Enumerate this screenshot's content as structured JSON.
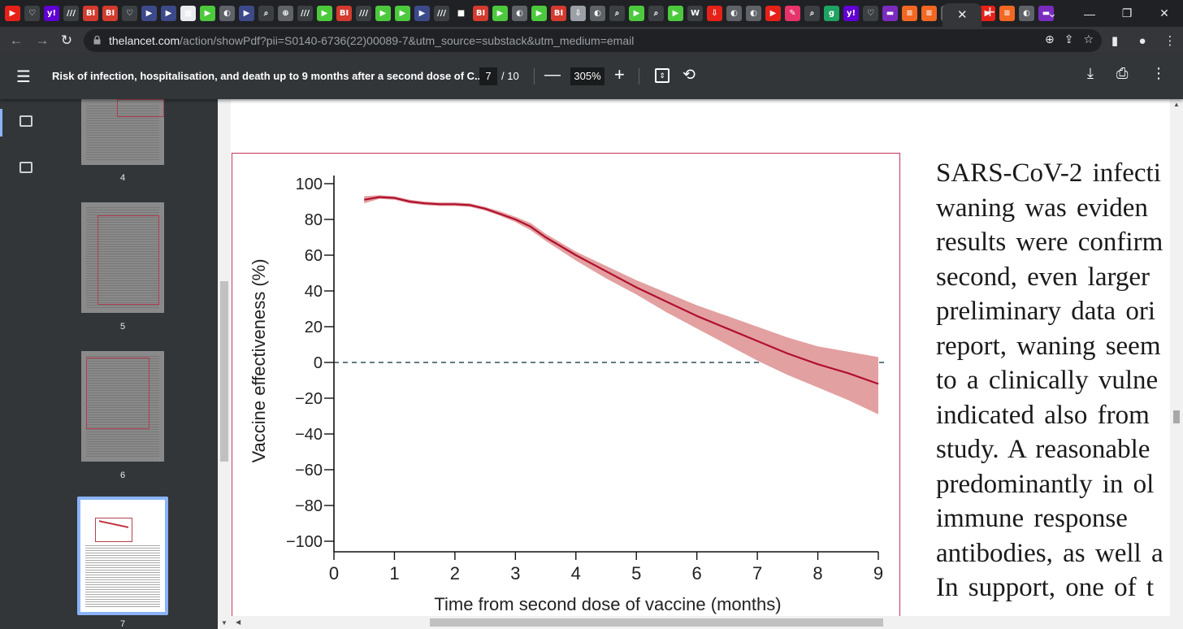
{
  "browser": {
    "url_host": "thelancet.com",
    "url_path": "/action/showPdf?pii=S0140-6736(22)00089-7&utm_source=substack&utm_medium=email",
    "tab_icons": [
      {
        "label": "▶",
        "color": "#e62117"
      },
      {
        "label": "♡",
        "color": "#3c4043"
      },
      {
        "label": "y!",
        "color": "#6001d2"
      },
      {
        "label": "///",
        "color": "#3c4043"
      },
      {
        "label": "BI",
        "color": "#d23b2e"
      },
      {
        "label": "BI",
        "color": "#d23b2e"
      },
      {
        "label": "♡",
        "color": "#3c4043"
      },
      {
        "label": "▶",
        "color": "#3c4a8a"
      },
      {
        "label": "▶",
        "color": "#3c4a8a"
      },
      {
        "label": "▦",
        "color": "#e8eaed"
      },
      {
        "label": "▶",
        "color": "#4cc93c"
      },
      {
        "label": "◐",
        "color": "#5f6368"
      },
      {
        "label": "▶",
        "color": "#3c4a8a"
      },
      {
        "label": "⌕",
        "color": "#3c4043"
      },
      {
        "label": "⊕",
        "color": "#5f6368"
      },
      {
        "label": "///",
        "color": "#3c4043"
      },
      {
        "label": "▶",
        "color": "#4cc93c"
      },
      {
        "label": "BI",
        "color": "#d23b2e"
      },
      {
        "label": "///",
        "color": "#3c4043"
      },
      {
        "label": "▶",
        "color": "#4cc93c"
      },
      {
        "label": "▶",
        "color": "#4cc93c"
      },
      {
        "label": "▶",
        "color": "#3c4a8a"
      },
      {
        "label": "///",
        "color": "#3c4043"
      },
      {
        "label": "■",
        "color": "#202124"
      },
      {
        "label": "BI",
        "color": "#d23b2e"
      },
      {
        "label": "▶",
        "color": "#4cc93c"
      },
      {
        "label": "◐",
        "color": "#5f6368"
      },
      {
        "label": "▶",
        "color": "#4cc93c"
      },
      {
        "label": "BI",
        "color": "#d23b2e"
      },
      {
        "label": "⇩",
        "color": "#9aa0a6"
      },
      {
        "label": "◐",
        "color": "#5f6368"
      },
      {
        "label": "⌕",
        "color": "#3c4043"
      },
      {
        "label": "▶",
        "color": "#4cc93c"
      },
      {
        "label": "⌕",
        "color": "#3c4043"
      },
      {
        "label": "▶",
        "color": "#4cc93c"
      },
      {
        "label": "W",
        "color": "#3c4043"
      },
      {
        "label": "⇩",
        "color": "#e62117"
      },
      {
        "label": "◐",
        "color": "#5f6368"
      },
      {
        "label": "◐",
        "color": "#5f6368"
      },
      {
        "label": "▶",
        "color": "#e62117"
      },
      {
        "label": "✎",
        "color": "#e8336a"
      },
      {
        "label": "⌕",
        "color": "#3c4043"
      },
      {
        "label": "g",
        "color": "#1ea362"
      },
      {
        "label": "y!",
        "color": "#6001d2"
      },
      {
        "label": "♡",
        "color": "#3c4043"
      },
      {
        "label": "▬",
        "color": "#7b2cbf"
      },
      {
        "label": "≡",
        "color": "#f26722"
      },
      {
        "label": "≡",
        "color": "#f26722"
      },
      {
        "label": "◐",
        "color": "#5f6368"
      },
      {
        "label": "◐",
        "color": "#5f6368"
      },
      {
        "label": "▶",
        "color": "#e62117"
      },
      {
        "label": "≡",
        "color": "#f26722"
      },
      {
        "label": "◐",
        "color": "#5f6368"
      },
      {
        "label": "▬",
        "color": "#7b2cbf"
      }
    ],
    "close_tab": "✕",
    "new_tab": "+"
  },
  "pdf": {
    "title": "Risk of infection, hospitalisation, and death up to 9 months after a second dose of C...",
    "page_current": "7",
    "page_total": "/ 10",
    "zoom": "305%",
    "thumbnails": [
      {
        "num": "4"
      },
      {
        "num": "5"
      },
      {
        "num": "6"
      },
      {
        "num": "7"
      }
    ]
  },
  "chart_data": {
    "type": "line",
    "xlabel": "Time from second dose of vaccine (months)",
    "ylabel": "Vaccine effectiveness (%)",
    "xlim": [
      0,
      9
    ],
    "ylim": [
      -100,
      100
    ],
    "xticks": [
      0,
      1,
      2,
      3,
      4,
      5,
      6,
      7,
      8,
      9
    ],
    "yticks": [
      100,
      80,
      60,
      40,
      20,
      0,
      -20,
      -40,
      -60,
      -80,
      -100
    ],
    "reference_line": {
      "y": 0,
      "style": "dashed"
    },
    "series": [
      {
        "x": [
          0.5,
          0.75,
          1.0,
          1.25,
          1.5,
          1.75,
          2.0,
          2.25,
          2.5,
          2.75,
          3.0,
          3.25,
          3.5,
          4.0,
          4.5,
          5.0,
          5.5,
          6.0,
          6.5,
          7.0,
          7.5,
          8.0,
          8.5,
          9.0
        ],
        "y": [
          91,
          92.5,
          92,
          90,
          89,
          88.5,
          88.5,
          88,
          86,
          83,
          80,
          76,
          70,
          60,
          51,
          42,
          34,
          26,
          19,
          12,
          5,
          -1,
          -6,
          -12
        ],
        "ci_lower": [
          89,
          91.5,
          91,
          89,
          88,
          87.5,
          87.5,
          87,
          85,
          82,
          78.5,
          74,
          68,
          57,
          47,
          38,
          28,
          19,
          10,
          1,
          -7,
          -14,
          -21,
          -29
        ],
        "ci_upper": [
          93,
          93.5,
          93,
          91,
          90,
          89.5,
          89.5,
          89,
          87,
          84.5,
          81.5,
          78,
          72,
          62,
          54,
          46,
          39,
          32,
          26,
          20,
          14,
          9,
          6,
          3
        ],
        "color": "#b0102e",
        "band_color": "#e3a0a0"
      }
    ]
  },
  "body_text": [
    "SARS-CoV-2  infecti",
    "waning  was  eviden",
    "results were confirm",
    "second, even larger",
    "preliminary data ori",
    "report, waning seem",
    "to  a  clinically  vulne",
    "indicated also from",
    "study. A reasonable",
    "predominantly in ol",
    "immune  response",
    "antibodies, as well a",
    "In support, one of t"
  ]
}
